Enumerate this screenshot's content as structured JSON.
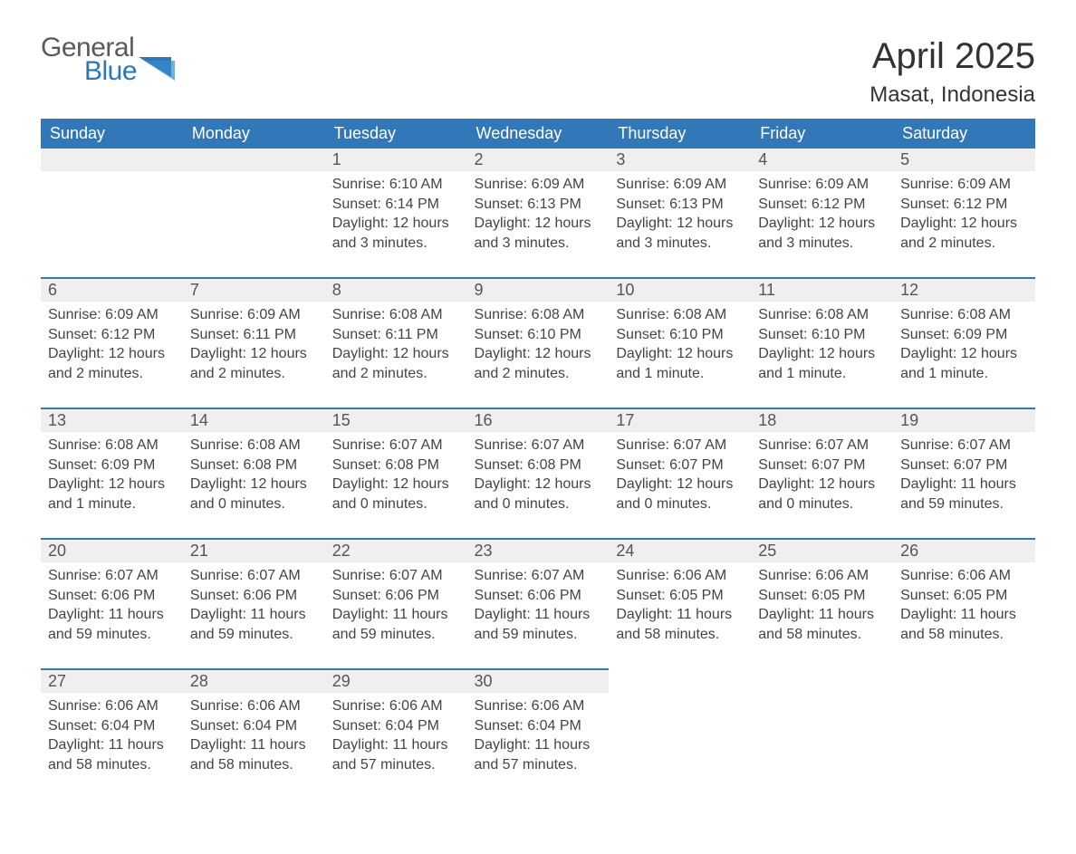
{
  "logo": {
    "text1": "General",
    "text2": "Blue",
    "color_gray": "#5a5a5a",
    "color_blue": "#2b77b8"
  },
  "title": "April 2025",
  "location": "Masat, Indonesia",
  "colors": {
    "header_bg": "#3278b9",
    "header_text": "#ffffff",
    "daynum_bg": "#efefef",
    "row_border": "#3278b9",
    "body_text": "#444444",
    "title_text": "#333333",
    "background": "#ffffff"
  },
  "typography": {
    "title_fontsize": 40,
    "location_fontsize": 24,
    "dayname_fontsize": 18,
    "daynum_fontsize": 18,
    "cell_fontsize": 16,
    "logo_fontsize": 30
  },
  "day_names": [
    "Sunday",
    "Monday",
    "Tuesday",
    "Wednesday",
    "Thursday",
    "Friday",
    "Saturday"
  ],
  "weeks": [
    [
      null,
      null,
      {
        "n": "1",
        "sr": "6:10 AM",
        "ss": "6:14 PM",
        "dl": "12 hours and 3 minutes."
      },
      {
        "n": "2",
        "sr": "6:09 AM",
        "ss": "6:13 PM",
        "dl": "12 hours and 3 minutes."
      },
      {
        "n": "3",
        "sr": "6:09 AM",
        "ss": "6:13 PM",
        "dl": "12 hours and 3 minutes."
      },
      {
        "n": "4",
        "sr": "6:09 AM",
        "ss": "6:12 PM",
        "dl": "12 hours and 3 minutes."
      },
      {
        "n": "5",
        "sr": "6:09 AM",
        "ss": "6:12 PM",
        "dl": "12 hours and 2 minutes."
      }
    ],
    [
      {
        "n": "6",
        "sr": "6:09 AM",
        "ss": "6:12 PM",
        "dl": "12 hours and 2 minutes."
      },
      {
        "n": "7",
        "sr": "6:09 AM",
        "ss": "6:11 PM",
        "dl": "12 hours and 2 minutes."
      },
      {
        "n": "8",
        "sr": "6:08 AM",
        "ss": "6:11 PM",
        "dl": "12 hours and 2 minutes."
      },
      {
        "n": "9",
        "sr": "6:08 AM",
        "ss": "6:10 PM",
        "dl": "12 hours and 2 minutes."
      },
      {
        "n": "10",
        "sr": "6:08 AM",
        "ss": "6:10 PM",
        "dl": "12 hours and 1 minute."
      },
      {
        "n": "11",
        "sr": "6:08 AM",
        "ss": "6:10 PM",
        "dl": "12 hours and 1 minute."
      },
      {
        "n": "12",
        "sr": "6:08 AM",
        "ss": "6:09 PM",
        "dl": "12 hours and 1 minute."
      }
    ],
    [
      {
        "n": "13",
        "sr": "6:08 AM",
        "ss": "6:09 PM",
        "dl": "12 hours and 1 minute."
      },
      {
        "n": "14",
        "sr": "6:08 AM",
        "ss": "6:08 PM",
        "dl": "12 hours and 0 minutes."
      },
      {
        "n": "15",
        "sr": "6:07 AM",
        "ss": "6:08 PM",
        "dl": "12 hours and 0 minutes."
      },
      {
        "n": "16",
        "sr": "6:07 AM",
        "ss": "6:08 PM",
        "dl": "12 hours and 0 minutes."
      },
      {
        "n": "17",
        "sr": "6:07 AM",
        "ss": "6:07 PM",
        "dl": "12 hours and 0 minutes."
      },
      {
        "n": "18",
        "sr": "6:07 AM",
        "ss": "6:07 PM",
        "dl": "12 hours and 0 minutes."
      },
      {
        "n": "19",
        "sr": "6:07 AM",
        "ss": "6:07 PM",
        "dl": "11 hours and 59 minutes."
      }
    ],
    [
      {
        "n": "20",
        "sr": "6:07 AM",
        "ss": "6:06 PM",
        "dl": "11 hours and 59 minutes."
      },
      {
        "n": "21",
        "sr": "6:07 AM",
        "ss": "6:06 PM",
        "dl": "11 hours and 59 minutes."
      },
      {
        "n": "22",
        "sr": "6:07 AM",
        "ss": "6:06 PM",
        "dl": "11 hours and 59 minutes."
      },
      {
        "n": "23",
        "sr": "6:07 AM",
        "ss": "6:06 PM",
        "dl": "11 hours and 59 minutes."
      },
      {
        "n": "24",
        "sr": "6:06 AM",
        "ss": "6:05 PM",
        "dl": "11 hours and 58 minutes."
      },
      {
        "n": "25",
        "sr": "6:06 AM",
        "ss": "6:05 PM",
        "dl": "11 hours and 58 minutes."
      },
      {
        "n": "26",
        "sr": "6:06 AM",
        "ss": "6:05 PM",
        "dl": "11 hours and 58 minutes."
      }
    ],
    [
      {
        "n": "27",
        "sr": "6:06 AM",
        "ss": "6:04 PM",
        "dl": "11 hours and 58 minutes."
      },
      {
        "n": "28",
        "sr": "6:06 AM",
        "ss": "6:04 PM",
        "dl": "11 hours and 58 minutes."
      },
      {
        "n": "29",
        "sr": "6:06 AM",
        "ss": "6:04 PM",
        "dl": "11 hours and 57 minutes."
      },
      {
        "n": "30",
        "sr": "6:06 AM",
        "ss": "6:04 PM",
        "dl": "11 hours and 57 minutes."
      },
      null,
      null,
      null
    ]
  ],
  "labels": {
    "sunrise": "Sunrise: ",
    "sunset": "Sunset: ",
    "daylight": "Daylight: "
  }
}
